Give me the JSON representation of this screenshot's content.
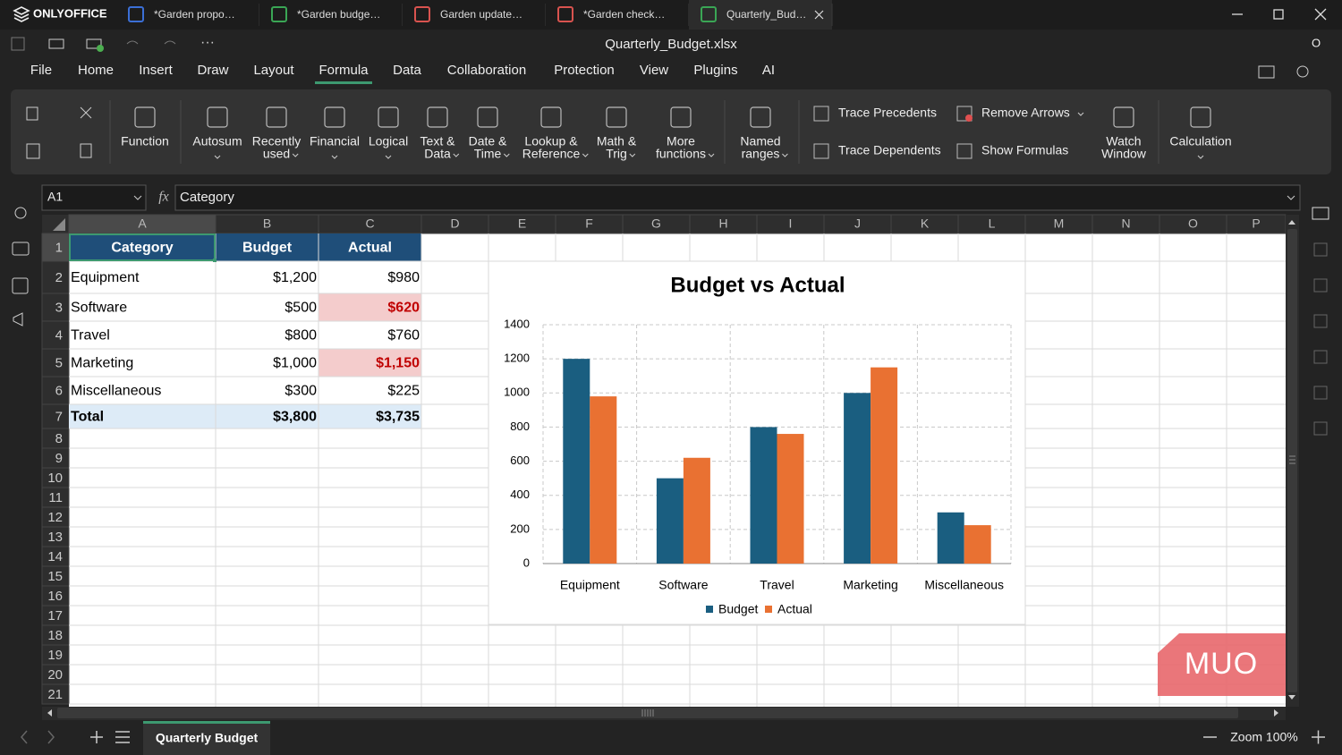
{
  "app": {
    "name": "ONLYOFFICE",
    "tabs": [
      "*Garden propo…",
      "*Garden budge…",
      "Garden update…",
      "*Garden check…",
      "Quarterly_Bud…"
    ]
  },
  "toolbar": {
    "file_name": "Quarterly_Budget.xlsx",
    "user": "O"
  },
  "menu": [
    "File",
    "Home",
    "Insert",
    "Draw",
    "Layout",
    "Formula",
    "Data",
    "Collaboration",
    "Protection",
    "View",
    "Plugins",
    "AI"
  ],
  "ribbon": {
    "buttons": [
      {
        "label": [
          "Function"
        ]
      },
      {
        "label": [
          "Autosum"
        ]
      },
      {
        "label": [
          "Recently",
          "used"
        ]
      },
      {
        "label": [
          "Financial"
        ]
      },
      {
        "label": [
          "Logical"
        ]
      },
      {
        "label": [
          "Text &",
          "Data"
        ]
      },
      {
        "label": [
          "Date &",
          "Time"
        ]
      },
      {
        "label": [
          "Lookup &",
          "Reference"
        ]
      },
      {
        "label": [
          "Math &",
          "Trig"
        ]
      },
      {
        "label": [
          "More",
          "functions"
        ]
      },
      {
        "label": [
          "Named",
          "ranges"
        ]
      },
      {
        "label": [
          "Watch",
          "Window"
        ]
      },
      {
        "label": [
          "Calculation"
        ]
      }
    ],
    "small": [
      "Trace Precedents",
      "Trace Dependents",
      "Remove Arrows",
      "Show Formulas"
    ]
  },
  "formula_bar": {
    "cell": "A1",
    "fx": "fx",
    "content": "Category"
  },
  "sheet": {
    "columns": [
      "A",
      "B",
      "C",
      "D",
      "E",
      "F",
      "G",
      "H",
      "I",
      "J",
      "K",
      "L",
      "M",
      "N",
      "O",
      "P"
    ],
    "rows": [
      1,
      2,
      3,
      4,
      5,
      6,
      7,
      8,
      9,
      10,
      11,
      12,
      13,
      14,
      15,
      16,
      17,
      18,
      19,
      20,
      21
    ],
    "cells": [
      [
        "Category",
        "Budget",
        "Actual"
      ],
      [
        "Equipment",
        "$1,200",
        "$980"
      ],
      [
        "Software",
        "$500",
        "$620"
      ],
      [
        "Travel",
        "$800",
        "$760"
      ],
      [
        "Marketing",
        "$1,000",
        "$1,150"
      ],
      [
        "Miscellaneous",
        "$300",
        "$225"
      ],
      [
        "Total",
        "$3,800",
        "$3,735"
      ]
    ]
  },
  "chart_data": {
    "type": "bar",
    "title": "Budget vs Actual",
    "categories": [
      "Equipment",
      "Software",
      "Travel",
      "Marketing",
      "Miscellaneous"
    ],
    "series": [
      {
        "name": "Budget",
        "color": "#1a5e80",
        "values": [
          1200,
          500,
          800,
          1000,
          300
        ]
      },
      {
        "name": "Actual",
        "color": "#e97132",
        "values": [
          980,
          620,
          760,
          1150,
          225
        ]
      }
    ],
    "ylim": [
      0,
      1400
    ],
    "yticks": [
      0,
      200,
      400,
      600,
      800,
      1000,
      1200,
      1400
    ],
    "grid": true,
    "legend": "bottom"
  },
  "status": {
    "sheet_tab": "Quarterly Budget",
    "zoom": "Zoom 100%"
  },
  "watermark": "MUO"
}
